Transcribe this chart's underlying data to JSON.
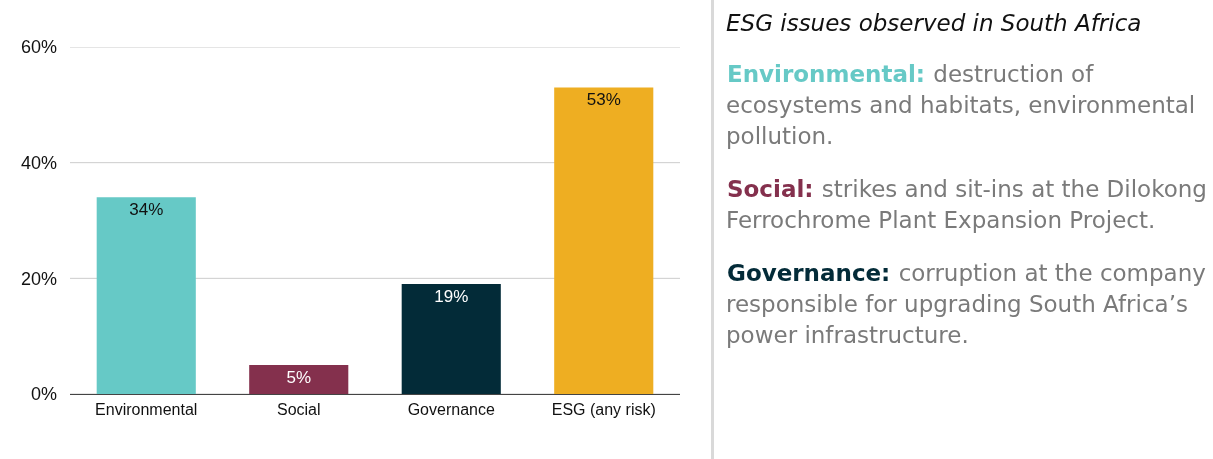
{
  "chart_data": [
    {
      "type": "bar",
      "categories": [
        "Environmental",
        "Social",
        "Governance",
        "ESG (any risk)"
      ],
      "values": [
        34,
        5,
        19,
        53
      ],
      "colors": [
        "#66c9c6",
        "#84304d",
        "#032b38",
        "#eeae22"
      ],
      "value_labels": [
        "34%",
        "5%",
        "19%",
        "53%"
      ],
      "ylim": [
        0,
        60
      ],
      "yticks": [
        {
          "value": 0,
          "label": "0%"
        },
        {
          "value": 20,
          "label": "20%"
        },
        {
          "value": 40,
          "label": "40%"
        },
        {
          "value": 60,
          "label": "60%"
        }
      ],
      "grid": "y"
    },
    {
      "type": "other",
      "title": "ESG issues observed in South Africa",
      "colors": [
        "#66c9c6",
        "#84304d",
        "#032b38"
      ],
      "annotations": [
        "Environmental: destruction of ecosystems and habitats, environmental pollution.",
        "Social: strikes and sit-ins at the Dilokong Ferrochrome Plant Expansion Project.",
        "Governance: corruption at the company responsible for upgrading South Africa’s power infrastructure."
      ]
    }
  ]
}
